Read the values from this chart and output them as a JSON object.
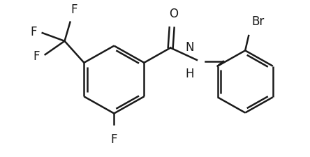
{
  "bg_color": "#ffffff",
  "line_color": "#1a1a1a",
  "line_width": 1.8,
  "font_size": 12,
  "figsize": [
    4.44,
    2.26
  ],
  "dpi": 100,
  "xlim": [
    0,
    444
  ],
  "ylim": [
    0,
    226
  ]
}
